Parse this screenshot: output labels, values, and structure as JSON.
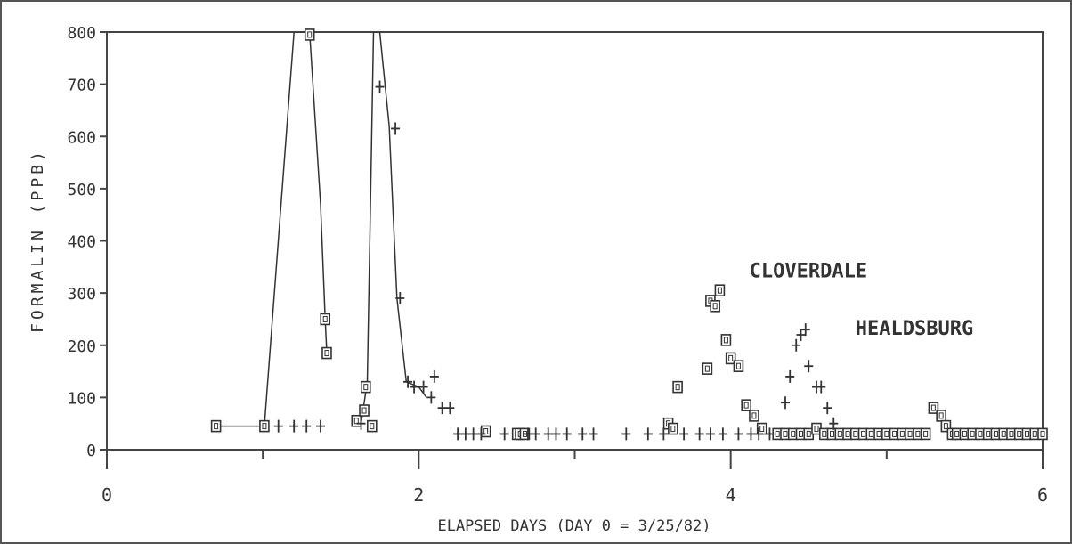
{
  "chart_data": {
    "type": "line",
    "title": "",
    "xlabel": "ELAPSED DAYS (DAY 0 = 3/25/82)",
    "ylabel": "FORMALIN (PPB)",
    "xlim": [
      0,
      6
    ],
    "ylim": [
      0,
      800
    ],
    "x_ticks": [
      0,
      2,
      4,
      6
    ],
    "x_tick_labels": [
      "0",
      "2",
      "4",
      "6"
    ],
    "y_ticks": [
      0,
      100,
      200,
      300,
      400,
      500,
      600,
      700,
      800
    ],
    "y_tick_labels": [
      "0",
      "100",
      "200",
      "300",
      "400",
      "500",
      "600",
      "700",
      "800"
    ],
    "grid": false,
    "annotations": [
      {
        "text": "CLOVERDALE",
        "x": 4.12,
        "y": 330
      },
      {
        "text": "HEALDSBURG",
        "x": 4.8,
        "y": 220
      }
    ],
    "series": [
      {
        "marker": "square",
        "line_points": [
          [
            0.7,
            45
          ],
          [
            1.01,
            45
          ],
          [
            1.2,
            800
          ],
          [
            1.3,
            800
          ],
          [
            1.37,
            470
          ],
          [
            1.4,
            250
          ],
          [
            1.41,
            185
          ]
        ],
        "points": [
          [
            0.7,
            45
          ],
          [
            1.01,
            45
          ],
          [
            1.3,
            795
          ],
          [
            1.4,
            250
          ],
          [
            1.41,
            185
          ],
          [
            1.6,
            55
          ],
          [
            1.65,
            75
          ],
          [
            1.66,
            120
          ],
          [
            1.7,
            45
          ],
          [
            2.43,
            35
          ],
          [
            2.63,
            30
          ],
          [
            2.65,
            30
          ],
          [
            2.68,
            30
          ],
          [
            3.6,
            50
          ],
          [
            3.63,
            40
          ],
          [
            3.66,
            120
          ],
          [
            3.85,
            155
          ],
          [
            3.87,
            285
          ],
          [
            3.9,
            275
          ],
          [
            3.93,
            305
          ],
          [
            3.97,
            210
          ],
          [
            4.0,
            175
          ],
          [
            4.05,
            160
          ],
          [
            4.1,
            85
          ],
          [
            4.15,
            65
          ],
          [
            4.2,
            40
          ],
          [
            4.3,
            30
          ],
          [
            4.35,
            30
          ],
          [
            4.4,
            30
          ],
          [
            4.45,
            30
          ],
          [
            4.5,
            30
          ],
          [
            4.55,
            40
          ],
          [
            4.6,
            30
          ],
          [
            4.65,
            30
          ],
          [
            4.7,
            30
          ],
          [
            4.75,
            30
          ],
          [
            4.8,
            30
          ],
          [
            4.85,
            30
          ],
          [
            4.9,
            30
          ],
          [
            4.95,
            30
          ],
          [
            5.0,
            30
          ],
          [
            5.05,
            30
          ],
          [
            5.1,
            30
          ],
          [
            5.15,
            30
          ],
          [
            5.2,
            30
          ],
          [
            5.25,
            30
          ],
          [
            5.3,
            80
          ],
          [
            5.35,
            65
          ],
          [
            5.38,
            45
          ],
          [
            5.42,
            30
          ],
          [
            5.45,
            30
          ],
          [
            5.5,
            30
          ],
          [
            5.55,
            30
          ],
          [
            5.6,
            30
          ],
          [
            5.65,
            30
          ],
          [
            5.7,
            30
          ],
          [
            5.75,
            30
          ],
          [
            5.8,
            30
          ],
          [
            5.85,
            30
          ],
          [
            5.9,
            30
          ],
          [
            5.95,
            30
          ],
          [
            6.0,
            30
          ]
        ]
      },
      {
        "marker": "plus",
        "line_points": [
          [
            1.63,
            50
          ],
          [
            1.67,
            130
          ],
          [
            1.71,
            800
          ],
          [
            1.75,
            800
          ],
          [
            1.81,
            620
          ],
          [
            1.86,
            290
          ],
          [
            1.92,
            130
          ],
          [
            2.0,
            120
          ],
          [
            2.05,
            100
          ]
        ],
        "points": [
          [
            1.1,
            45
          ],
          [
            1.2,
            45
          ],
          [
            1.28,
            45
          ],
          [
            1.37,
            45
          ],
          [
            1.63,
            50
          ],
          [
            1.75,
            695
          ],
          [
            1.85,
            615
          ],
          [
            1.88,
            290
          ],
          [
            1.93,
            130
          ],
          [
            1.97,
            120
          ],
          [
            2.03,
            120
          ],
          [
            2.08,
            100
          ],
          [
            2.1,
            140
          ],
          [
            2.15,
            80
          ],
          [
            2.2,
            80
          ],
          [
            2.25,
            30
          ],
          [
            2.3,
            30
          ],
          [
            2.35,
            30
          ],
          [
            2.4,
            30
          ],
          [
            2.55,
            30
          ],
          [
            2.7,
            30
          ],
          [
            2.75,
            30
          ],
          [
            2.83,
            30
          ],
          [
            2.88,
            30
          ],
          [
            2.95,
            30
          ],
          [
            3.05,
            30
          ],
          [
            3.12,
            30
          ],
          [
            3.33,
            30
          ],
          [
            3.47,
            30
          ],
          [
            3.57,
            30
          ],
          [
            3.7,
            30
          ],
          [
            3.8,
            30
          ],
          [
            3.87,
            30
          ],
          [
            3.95,
            30
          ],
          [
            4.05,
            30
          ],
          [
            4.13,
            30
          ],
          [
            4.18,
            30
          ],
          [
            4.25,
            30
          ],
          [
            4.35,
            90
          ],
          [
            4.38,
            140
          ],
          [
            4.42,
            200
          ],
          [
            4.45,
            220
          ],
          [
            4.48,
            230
          ],
          [
            4.5,
            160
          ],
          [
            4.55,
            120
          ],
          [
            4.58,
            120
          ],
          [
            4.62,
            80
          ],
          [
            4.66,
            50
          ]
        ]
      }
    ]
  }
}
